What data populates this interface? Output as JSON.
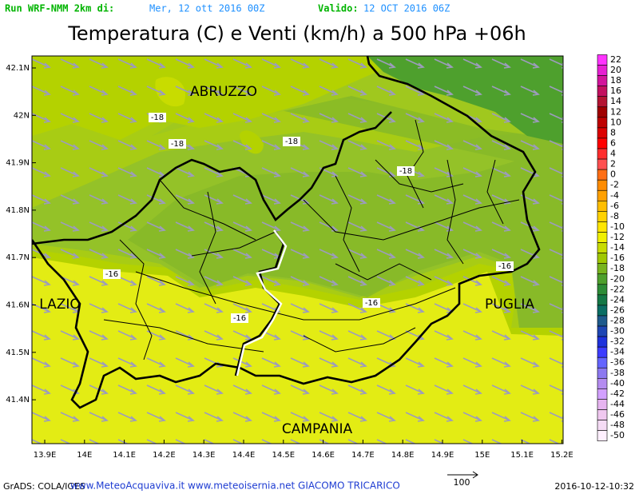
{
  "header": {
    "run_label": "Run WRF-NMM 2km di:",
    "run_date": "Mer, 12 ott 2016 00Z",
    "valid_label": "Valido:",
    "valid_date": "12 OCT 2016 06Z"
  },
  "title": "Temperatura (C) e Venti (km/h) a 500 hPa +06h",
  "lat_labels": [
    "42.1N",
    "42N",
    "41.9N",
    "41.8N",
    "41.7N",
    "41.6N",
    "41.5N",
    "41.4N"
  ],
  "lon_labels": [
    "13.9E",
    "14E",
    "14.1E",
    "14.2E",
    "14.3E",
    "14.4E",
    "14.5E",
    "14.6E",
    "14.7E",
    "14.8E",
    "14.9E",
    "15E",
    "15.1E",
    "15.2E"
  ],
  "regions": [
    "ABRUZZO",
    "LAZIO",
    "PUGLIA",
    "CAMPANIA"
  ],
  "contour_labels": [
    "-18",
    "-18",
    "-18",
    "-18",
    "-16",
    "-16",
    "-16",
    "-16"
  ],
  "colorbar": {
    "levels": [
      22,
      20,
      18,
      16,
      14,
      12,
      10,
      8,
      6,
      4,
      2,
      0,
      -2,
      -4,
      -6,
      -8,
      -10,
      -12,
      -14,
      -16,
      -18,
      -20,
      -22,
      -24,
      -26,
      -28,
      -30,
      -32,
      -34,
      -36,
      -38,
      -40,
      -42,
      -44,
      -46,
      -48,
      -50
    ],
    "colors": [
      "#ff33ff",
      "#e620d2",
      "#d2149b",
      "#c3105f",
      "#b41432",
      "#a00000",
      "#be0000",
      "#dc0000",
      "#ff0000",
      "#ff2d2d",
      "#ff5050",
      "#ff6e14",
      "#ff8c00",
      "#ffa000",
      "#ffbe00",
      "#ffd200",
      "#ffe600",
      "#f0f000",
      "#c8dc00",
      "#a0c800",
      "#78b41e",
      "#4ea02d",
      "#2d8c37",
      "#147846",
      "#0a6e64",
      "#1e5a8c",
      "#1e46b4",
      "#1e32dc",
      "#3c3cff",
      "#6464ff",
      "#8c78f0",
      "#b48cf0",
      "#d2a0ff",
      "#e6b4f0",
      "#f0c8f0",
      "#f5dcf5",
      "#fff0ff"
    ]
  },
  "footer": {
    "credit": "GrADS: COLA/IGES",
    "sites": "www.MeteoAcquaviva.it www.meteoisernia.net GIACOMO TRICARICO",
    "arrow_scale": "100",
    "timestamp": "2016-10-12-10:32"
  }
}
